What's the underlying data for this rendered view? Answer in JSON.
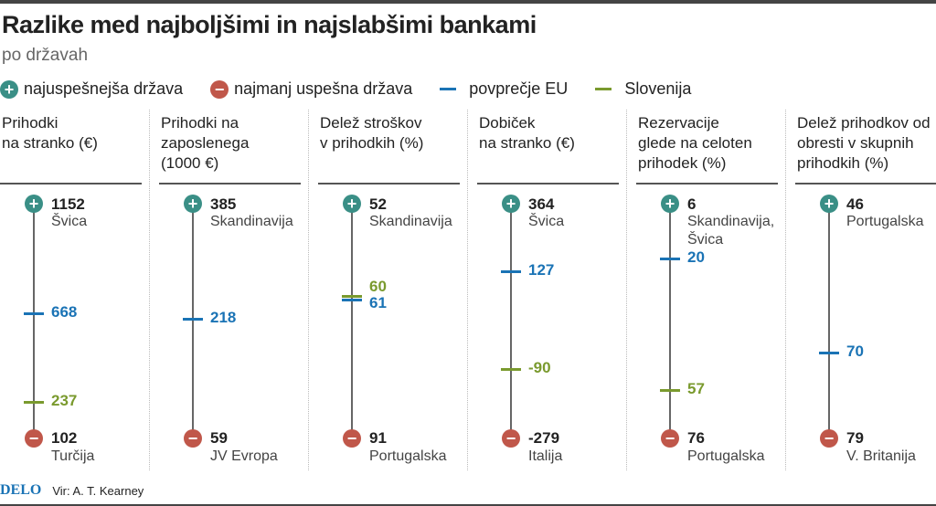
{
  "title": "Razlike med najboljšimi in najslabšimi bankami",
  "subtitle": "po državah",
  "legend": {
    "best": "najuspešnejša država",
    "worst": "najmanj uspešna država",
    "eu": "povprečje EU",
    "slo": "Slovenija"
  },
  "colors": {
    "best": "#3a8f86",
    "worst": "#c0574a",
    "eu": "#1a73b5",
    "slo": "#7a9a2e"
  },
  "icons": {
    "best": "plus-circle-icon",
    "worst": "minus-circle-icon"
  },
  "footer": {
    "logo": "DELO",
    "source": "Vir: A. T. Kearney"
  },
  "chart_data": {
    "type": "range-dot",
    "columns": [
      {
        "title": "Prihodki na stranko (€)",
        "best": {
          "value": "1152",
          "country": "Švica"
        },
        "worst": {
          "value": "102",
          "country": "Turčija"
        },
        "eu": "668",
        "slo": "237"
      },
      {
        "title": "Prihodki na zaposlenega (1000 €)",
        "best": {
          "value": "385",
          "country": "Skandinavija"
        },
        "worst": {
          "value": "59",
          "country": "JV Evropa"
        },
        "eu": "218",
        "slo": null
      },
      {
        "title": "Delež stroškov v prihodkih (%)",
        "best": {
          "value": "52",
          "country": "Skandinavija"
        },
        "worst": {
          "value": "91",
          "country": "Portugalska"
        },
        "eu": "61",
        "slo": "60"
      },
      {
        "title": "Dobiček na stranko (€)",
        "best": {
          "value": "364",
          "country": "Švica"
        },
        "worst": {
          "value": "-279",
          "country": "Italija"
        },
        "eu": "127",
        "slo": "-90"
      },
      {
        "title": "Rezervacije glede na celoten prihodek (%)",
        "best": {
          "value": "6",
          "country": "Skandinavija, Švica"
        },
        "worst": {
          "value": "76",
          "country": "Portugalska"
        },
        "eu": "20",
        "slo": "57"
      },
      {
        "title": "Delež prihodkov od obresti v skupnih prihodkih (%)",
        "best": {
          "value": "46",
          "country": "Portugalska"
        },
        "worst": {
          "value": "79",
          "country": "V. Britanija"
        },
        "eu": "70",
        "slo": null
      }
    ]
  }
}
